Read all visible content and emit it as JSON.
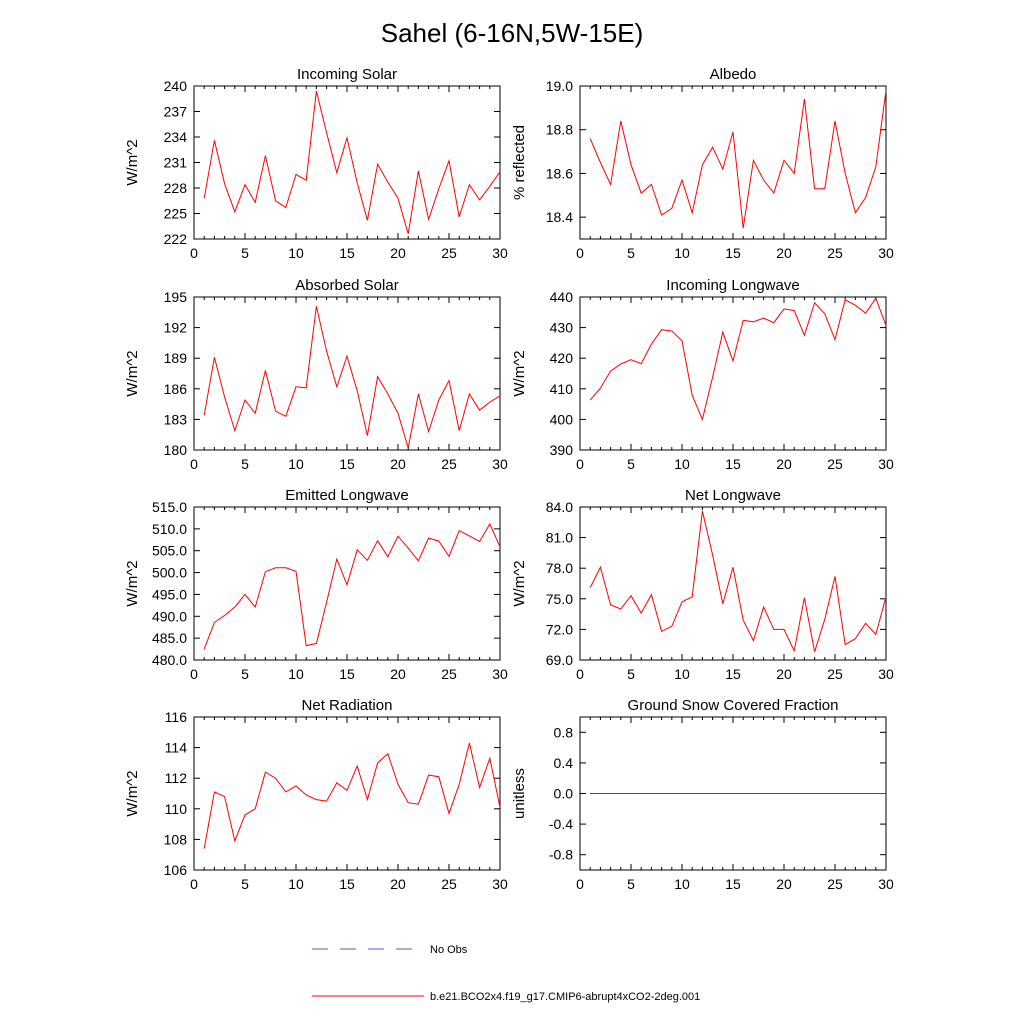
{
  "title": "Sahel (6-16N,5W-15E)",
  "colors": {
    "model": "#ff0000",
    "obs": "#5555cc",
    "axis": "#000000"
  },
  "legend": {
    "obs_label": "No Obs",
    "model_label": "b.e21.BCO2x4.f19_g17.CMIP6-abrupt4xCO2-2deg.001"
  },
  "chart_data": [
    {
      "type": "line",
      "title": "Incoming Solar",
      "ylabel": "W/m^2",
      "xlim": [
        0,
        30
      ],
      "ylim": [
        222,
        240
      ],
      "x_ticks": [
        "0",
        "5",
        "10",
        "15",
        "20",
        "25",
        "30"
      ],
      "y_ticks": [
        "222",
        "225",
        "228",
        "231",
        "234",
        "237",
        "240"
      ],
      "series": [
        {
          "values": [
            226.8,
            233.6,
            228.5,
            225.2,
            228.4,
            226.3,
            231.8,
            226.5,
            225.7,
            229.6,
            228.9,
            239.4,
            234.5,
            229.8,
            233.9,
            228.6,
            224.2,
            230.8,
            228.7,
            226.8,
            222.6,
            230.0,
            224.3,
            227.9,
            231.2,
            224.6,
            228.4,
            226.6,
            228.2,
            229.9
          ]
        }
      ]
    },
    {
      "type": "line",
      "title": "Albedo",
      "ylabel": "% reflected",
      "xlim": [
        0,
        30
      ],
      "ylim": [
        18.3,
        19.0
      ],
      "x_ticks": [
        "0",
        "5",
        "10",
        "15",
        "20",
        "25",
        "30"
      ],
      "y_ticks": [
        "18.4",
        "18.6",
        "18.8",
        "19.0"
      ],
      "series": [
        {
          "values": [
            18.76,
            18.65,
            18.55,
            18.84,
            18.64,
            18.51,
            18.55,
            18.41,
            18.44,
            18.57,
            18.42,
            18.64,
            18.72,
            18.62,
            18.79,
            18.35,
            18.66,
            18.57,
            18.51,
            18.66,
            18.6,
            18.94,
            18.53,
            18.53,
            18.84,
            18.6,
            18.42,
            18.49,
            18.63,
            18.98
          ]
        }
      ]
    },
    {
      "type": "line",
      "title": "Absorbed Solar",
      "ylabel": "W/m^2",
      "xlim": [
        0,
        30
      ],
      "ylim": [
        180,
        195
      ],
      "x_ticks": [
        "0",
        "5",
        "10",
        "15",
        "20",
        "25",
        "30"
      ],
      "y_ticks": [
        "180",
        "183",
        "186",
        "189",
        "192",
        "195"
      ],
      "series": [
        {
          "values": [
            183.4,
            189.1,
            185.2,
            181.9,
            184.9,
            183.6,
            187.8,
            183.8,
            183.3,
            186.2,
            186.1,
            194.1,
            189.7,
            186.2,
            189.2,
            185.8,
            181.4,
            187.2,
            185.5,
            183.6,
            180.2,
            185.5,
            181.8,
            184.9,
            186.8,
            181.9,
            185.5,
            183.9,
            184.7,
            185.3
          ]
        }
      ]
    },
    {
      "type": "line",
      "title": "Incoming Longwave",
      "ylabel": "W/m^2",
      "xlim": [
        0,
        30
      ],
      "ylim": [
        390,
        440
      ],
      "x_ticks": [
        "0",
        "5",
        "10",
        "15",
        "20",
        "25",
        "30"
      ],
      "y_ticks": [
        "390",
        "400",
        "410",
        "420",
        "430",
        "440"
      ],
      "series": [
        {
          "values": [
            406.3,
            410.2,
            415.8,
            418.1,
            419.5,
            418.2,
            424.6,
            429.3,
            428.9,
            425.7,
            407.9,
            400.0,
            413.8,
            428.5,
            419.1,
            432.4,
            431.9,
            433.1,
            431.6,
            436.1,
            435.6,
            427.5,
            438.1,
            434.5,
            426.1,
            439.1,
            437.3,
            434.7,
            439.6,
            430.7
          ]
        }
      ]
    },
    {
      "type": "line",
      "title": "Emitted Longwave",
      "ylabel": "W/m^2",
      "xlim": [
        0,
        30
      ],
      "ylim": [
        480,
        515
      ],
      "x_ticks": [
        "0",
        "5",
        "10",
        "15",
        "20",
        "25",
        "30"
      ],
      "y_ticks": [
        "480.0",
        "485.0",
        "490.0",
        "495.0",
        "500.0",
        "505.0",
        "510.0",
        "515.0"
      ],
      "series": [
        {
          "values": [
            482.5,
            488.6,
            490.2,
            492.1,
            495.0,
            492.1,
            500.2,
            501.1,
            501.1,
            500.3,
            483.3,
            483.8,
            493.2,
            503.1,
            497.2,
            505.2,
            502.8,
            507.3,
            503.6,
            508.3,
            505.6,
            502.7,
            507.9,
            507.2,
            503.7,
            509.6,
            508.4,
            507.1,
            511.1,
            505.9
          ]
        }
      ]
    },
    {
      "type": "line",
      "title": "Net Longwave",
      "ylabel": "W/m^2",
      "xlim": [
        0,
        30
      ],
      "ylim": [
        69,
        84
      ],
      "x_ticks": [
        "0",
        "5",
        "10",
        "15",
        "20",
        "25",
        "30"
      ],
      "y_ticks": [
        "69.0",
        "72.0",
        "75.0",
        "78.0",
        "81.0",
        "84.0"
      ],
      "series": [
        {
          "values": [
            76.1,
            78.1,
            74.4,
            74.0,
            75.3,
            73.6,
            75.4,
            71.8,
            72.3,
            74.7,
            75.2,
            83.6,
            79.3,
            74.5,
            78.1,
            72.9,
            70.9,
            74.2,
            72.0,
            72.0,
            69.9,
            75.1,
            69.8,
            73.0,
            77.2,
            70.5,
            71.1,
            72.6,
            71.5,
            75.2
          ]
        }
      ]
    },
    {
      "type": "line",
      "title": "Net Radiation",
      "ylabel": "W/m^2",
      "xlim": [
        0,
        30
      ],
      "ylim": [
        106,
        116
      ],
      "x_ticks": [
        "0",
        "5",
        "10",
        "15",
        "20",
        "25",
        "30"
      ],
      "y_ticks": [
        "106",
        "108",
        "110",
        "112",
        "114",
        "116"
      ],
      "series": [
        {
          "values": [
            107.4,
            111.1,
            110.8,
            107.9,
            109.6,
            110.0,
            112.4,
            112.0,
            111.1,
            111.5,
            110.9,
            110.6,
            110.5,
            111.7,
            111.2,
            112.8,
            110.6,
            113.0,
            113.6,
            111.6,
            110.4,
            110.3,
            112.2,
            112.1,
            109.7,
            111.6,
            114.3,
            111.4,
            113.3,
            110.1
          ]
        }
      ]
    },
    {
      "type": "line",
      "title": "Ground Snow Covered Fraction",
      "ylabel": "unitless",
      "xlim": [
        0,
        30
      ],
      "ylim": [
        -1.0,
        1.0
      ],
      "x_ticks": [
        "0",
        "5",
        "10",
        "15",
        "20",
        "25",
        "30"
      ],
      "y_ticks": [
        "-0.8",
        "-0.4",
        "0.0",
        "0.4",
        "0.8"
      ],
      "series": [
        {
          "values": [
            0,
            0,
            0,
            0,
            0,
            0,
            0,
            0,
            0,
            0,
            0,
            0,
            0,
            0,
            0,
            0,
            0,
            0,
            0,
            0,
            0,
            0,
            0,
            0,
            0,
            0,
            0,
            0,
            0,
            0
          ]
        }
      ]
    }
  ]
}
